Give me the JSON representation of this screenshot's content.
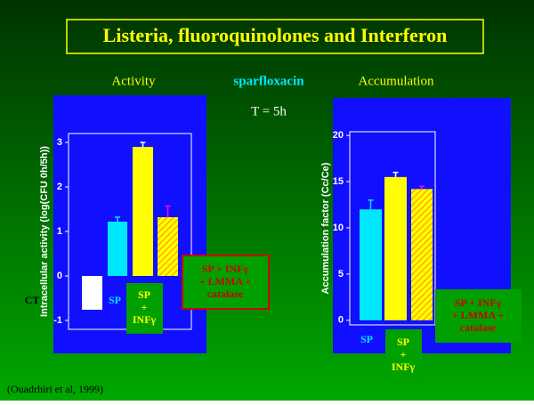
{
  "title": "Listeria, fluoroquinolones and Interferon",
  "headings": {
    "activity": "Activity",
    "drug": "sparfloxacin",
    "accumulation": "Accumulation",
    "time": "T = 5h"
  },
  "citation": "(Ouadrhiri et al, 1999)",
  "chart_data": [
    {
      "type": "bar",
      "y_label": "Intracellular activity (log(CFU 0h/5h))",
      "categories": [
        "CT",
        "SP",
        "SP\n+\nINFγ",
        "SP + INFγ\n+ LMMA +\ncatalase"
      ],
      "values": [
        -0.76,
        1.22,
        2.9,
        1.32
      ],
      "errors": [
        0,
        0.1,
        0.1,
        0.25
      ],
      "colors": [
        "#ffffff",
        "#00e8ff",
        "#ffff00",
        "#ffff00"
      ],
      "hatched": [
        false,
        false,
        false,
        true
      ],
      "error_colors": [
        "#ffffff",
        "#00e8ff",
        "#ffffff",
        "#ff00ff"
      ],
      "ylim": [
        -1.2,
        3.2
      ],
      "yticks": [
        -1,
        0,
        1,
        2,
        3
      ]
    },
    {
      "type": "bar",
      "y_label": "Accumulation factor (Cc/Ce)",
      "categories": [
        "SP",
        "SP\n+\nINFγ",
        "SP + INFγ\n+ LMMA +\ncatalase"
      ],
      "values": [
        12,
        15.5,
        14.2
      ],
      "errors": [
        1,
        0.5,
        0.3
      ],
      "colors": [
        "#00e8ff",
        "#ffff00",
        "#ffff00"
      ],
      "hatched": [
        false,
        false,
        true
      ],
      "error_colors": [
        "#00e8ff",
        "#ffffff",
        "#ff00ff"
      ],
      "ylim": [
        -0.5,
        20.4
      ],
      "yticks": [
        0,
        5,
        10,
        15,
        20
      ]
    }
  ]
}
